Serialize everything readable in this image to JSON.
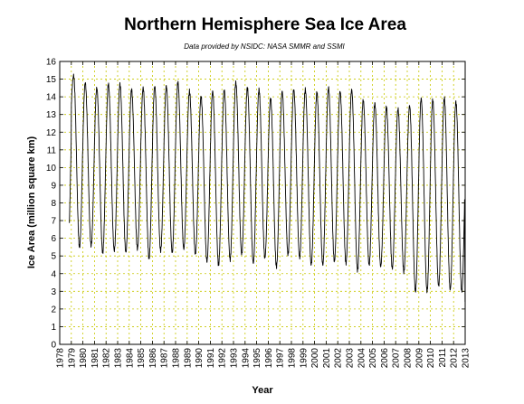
{
  "chart_data": {
    "type": "line",
    "title": "Northern Hemisphere Sea Ice Area",
    "subtitle": "Data provided by NSIDC: NASA SMMR and SSMI",
    "xlabel": "Year",
    "ylabel": "Ice Area (million square km)",
    "xlim": [
      1978,
      2013
    ],
    "ylim": [
      0,
      16
    ],
    "xticks": [
      "1978",
      "1979",
      "1980",
      "1981",
      "1982",
      "1983",
      "1984",
      "1985",
      "1986",
      "1987",
      "1988",
      "1989",
      "1990",
      "1991",
      "1992",
      "1993",
      "1994",
      "1995",
      "1996",
      "1997",
      "1998",
      "1999",
      "2000",
      "2001",
      "2002",
      "2003",
      "2004",
      "2005",
      "2006",
      "2007",
      "2008",
      "2009",
      "2010",
      "2011",
      "2012",
      "2013"
    ],
    "yticks": [
      "0",
      "1",
      "2",
      "3",
      "4",
      "5",
      "6",
      "7",
      "8",
      "9",
      "10",
      "11",
      "12",
      "13",
      "14",
      "15",
      "16"
    ],
    "grid": true,
    "line_color": "#000000",
    "grid_color": "#c8c800",
    "series": [
      {
        "start": "1978-11",
        "annual_max": [
          15.2,
          14.8,
          14.5,
          14.7,
          14.7,
          14.4,
          14.5,
          14.6,
          14.6,
          14.8,
          14.3,
          14.0,
          14.3,
          14.4,
          14.8,
          14.5,
          14.4,
          13.9,
          14.3,
          14.4,
          14.4,
          14.2,
          14.5,
          14.3,
          14.4,
          13.8,
          13.6,
          13.4,
          13.3,
          13.5,
          13.9,
          13.8,
          13.9,
          13.7
        ],
        "annual_min": [
          5.5,
          5.6,
          5.2,
          5.3,
          5.2,
          5.4,
          4.9,
          5.3,
          5.2,
          5.4,
          5.1,
          4.7,
          4.5,
          4.8,
          5.1,
          4.6,
          4.9,
          4.4,
          5.1,
          4.9,
          4.5,
          4.5,
          4.7,
          4.6,
          4.2,
          4.5,
          4.4,
          4.3,
          4.1,
          3.0,
          3.0,
          3.3,
          3.1,
          3.0
        ],
        "final_value": 2.4
      }
    ]
  }
}
